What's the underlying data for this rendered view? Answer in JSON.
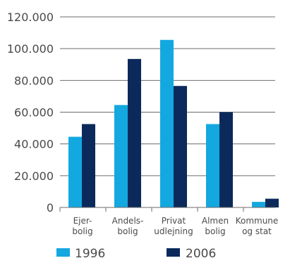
{
  "chart_data": {
    "type": "bar",
    "categories": [
      [
        "Ejer-",
        "bolig"
      ],
      [
        "Andels-",
        "bolig"
      ],
      [
        "Privat",
        "udlejning"
      ],
      [
        "Almen",
        "bolig"
      ],
      [
        "Kommune",
        "og stat"
      ]
    ],
    "series": [
      {
        "name": "1996",
        "color": "#13a8e0",
        "values": [
          44500,
          64500,
          105500,
          52500,
          3500
        ]
      },
      {
        "name": "2006",
        "color": "#0b2a5b",
        "values": [
          52500,
          93500,
          76500,
          60000,
          5500
        ]
      }
    ],
    "ylim": [
      0,
      120000
    ],
    "yticks": [
      0,
      20000,
      40000,
      60000,
      80000,
      100000,
      120000
    ],
    "ytick_labels": [
      "0",
      "20.000",
      "40.000",
      "60.000",
      "80.000",
      "100.000",
      "120.000"
    ],
    "grid": true,
    "legend_position": "bottom"
  }
}
